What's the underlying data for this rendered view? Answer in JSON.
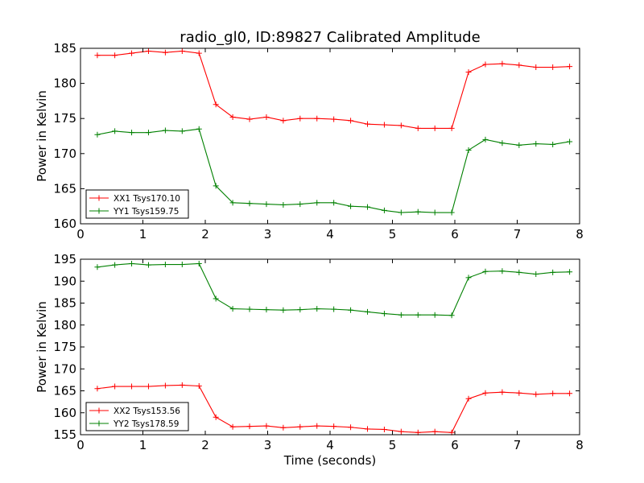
{
  "chart_data": [
    {
      "type": "line",
      "title": "radio_gl0, ID:89827 Calibrated Amplitude",
      "xlabel": "",
      "ylabel": "Power in Kelvin",
      "xlim": [
        0,
        8
      ],
      "ylim": [
        160,
        185
      ],
      "xticks": [
        "0",
        "1",
        "2",
        "3",
        "4",
        "5",
        "6",
        "7",
        "8"
      ],
      "yticks": [
        "160",
        "165",
        "170",
        "175",
        "180",
        "185"
      ],
      "grid": false,
      "legend_position": "lower-left",
      "x": [
        0.27,
        0.55,
        0.82,
        1.09,
        1.36,
        1.63,
        1.9,
        2.17,
        2.44,
        2.71,
        2.98,
        3.25,
        3.52,
        3.79,
        4.06,
        4.33,
        4.6,
        4.87,
        5.14,
        5.41,
        5.68,
        5.95,
        6.22,
        6.49,
        6.76,
        7.03,
        7.3,
        7.57,
        7.84
      ],
      "series": [
        {
          "name": "XX1 Tsys170.10",
          "color": "#ff0000",
          "values": [
            184.0,
            184.0,
            184.3,
            184.6,
            184.4,
            184.6,
            184.3,
            177.0,
            175.2,
            174.9,
            175.2,
            174.7,
            175.0,
            175.0,
            174.9,
            174.7,
            174.2,
            174.1,
            174.0,
            173.6,
            173.6,
            173.6,
            181.6,
            182.7,
            182.8,
            182.6,
            182.3,
            182.3,
            182.4
          ]
        },
        {
          "name": "YY1 Tsys159.75",
          "color": "#008000",
          "values": [
            172.7,
            173.2,
            173.0,
            173.0,
            173.3,
            173.2,
            173.5,
            165.4,
            163.0,
            162.9,
            162.8,
            162.7,
            162.8,
            163.0,
            163.0,
            162.5,
            162.4,
            161.9,
            161.6,
            161.7,
            161.6,
            161.6,
            170.5,
            172.0,
            171.5,
            171.2,
            171.4,
            171.3,
            171.7
          ]
        }
      ]
    },
    {
      "type": "line",
      "title": "",
      "xlabel": "Time (seconds)",
      "ylabel": "Power in Kelvin",
      "xlim": [
        0,
        8
      ],
      "ylim": [
        155,
        195
      ],
      "xticks": [
        "0",
        "1",
        "2",
        "3",
        "4",
        "5",
        "6",
        "7",
        "8"
      ],
      "yticks": [
        "155",
        "160",
        "165",
        "170",
        "175",
        "180",
        "185",
        "190",
        "195"
      ],
      "grid": false,
      "legend_position": "lower-left",
      "x": [
        0.27,
        0.55,
        0.82,
        1.09,
        1.36,
        1.63,
        1.9,
        2.17,
        2.44,
        2.71,
        2.98,
        3.25,
        3.52,
        3.79,
        4.06,
        4.33,
        4.6,
        4.87,
        5.14,
        5.41,
        5.68,
        5.95,
        6.22,
        6.49,
        6.76,
        7.03,
        7.3,
        7.57,
        7.84
      ],
      "series": [
        {
          "name": "XX2 Tsys153.56",
          "color": "#ff0000",
          "values": [
            165.5,
            166.0,
            166.0,
            166.0,
            166.2,
            166.3,
            166.1,
            159.0,
            156.8,
            156.9,
            157.0,
            156.6,
            156.8,
            157.0,
            156.9,
            156.7,
            156.3,
            156.2,
            155.7,
            155.5,
            155.7,
            155.5,
            163.2,
            164.5,
            164.7,
            164.5,
            164.2,
            164.4,
            164.4
          ]
        },
        {
          "name": "YY2 Tsys178.59",
          "color": "#008000",
          "values": [
            193.2,
            193.7,
            194.0,
            193.7,
            193.8,
            193.8,
            194.0,
            186.0,
            183.7,
            183.6,
            183.5,
            183.4,
            183.5,
            183.7,
            183.6,
            183.4,
            183.0,
            182.6,
            182.3,
            182.3,
            182.3,
            182.2,
            190.8,
            192.2,
            192.3,
            192.0,
            191.6,
            192.0,
            192.1
          ]
        }
      ]
    }
  ]
}
